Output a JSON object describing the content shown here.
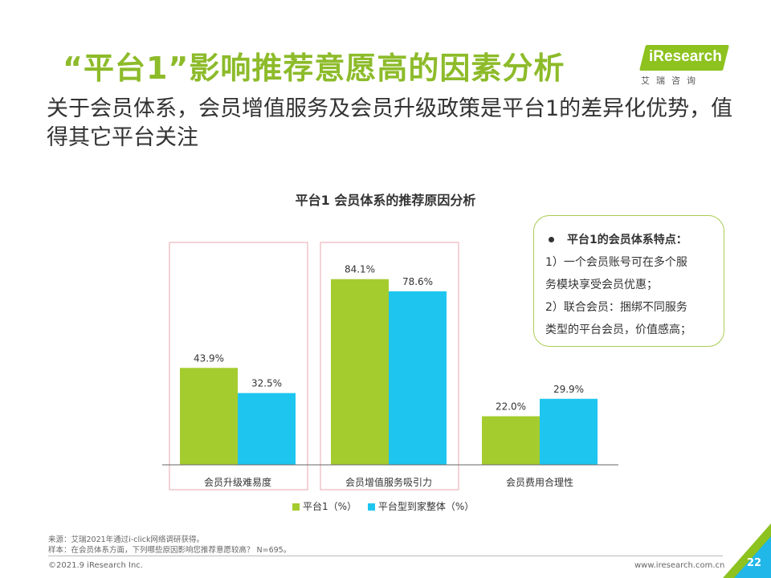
{
  "header": {
    "title": "“平台1”影响推荐意愿高的因素分析",
    "subtitle": "关于会员体系，会员增值服务及会员升级政策是平台1的差异化优势，值得其它平台关注"
  },
  "logo": {
    "text": "iResearch",
    "sub": "艾瑞咨询"
  },
  "note": {
    "heading": "平台1的会员体系特点：",
    "lines": [
      "1）一个会员账号可在多个服",
      "务模块享受会员优惠；",
      "2）联合会员：捆绑不同服务",
      "类型的平台会员，价值感高；"
    ]
  },
  "chart_data": {
    "type": "bar",
    "title": "平台1 会员体系的推荐原因分析",
    "categories": [
      "会员升级难易度",
      "会员增值服务吸引力",
      "会员费用合理性"
    ],
    "series": [
      {
        "name": "平台1（%）",
        "values": [
          43.9,
          84.1,
          22.0
        ],
        "labels": [
          "43.9%",
          "84.1%",
          "22.0%"
        ],
        "color": "#a5cc2f"
      },
      {
        "name": "平台型到家整体（%）",
        "values": [
          32.5,
          78.6,
          29.9
        ],
        "labels": [
          "32.5%",
          "78.6%",
          "29.9%"
        ],
        "color": "#1ec6ef"
      }
    ],
    "highlighted_categories": [
      0,
      1
    ],
    "highlight_color": "#e8a7ad",
    "ylim": [
      0,
      100
    ],
    "grid": false,
    "legend": "bottom"
  },
  "footer": {
    "source": "来源：艾瑞2021年通过i-click网络调研获得。",
    "sample": "样本：在会员体系方面，下列哪些原因影响您推荐意愿较高？ N=695。",
    "copyright": "©2021.9 iResearch Inc.",
    "website": "www.iresearch.com.cn",
    "page": "22"
  },
  "colors": {
    "accent": "#8dbb2a",
    "corner_green": "#8dc21f",
    "corner_blue": "#21b7e8"
  }
}
